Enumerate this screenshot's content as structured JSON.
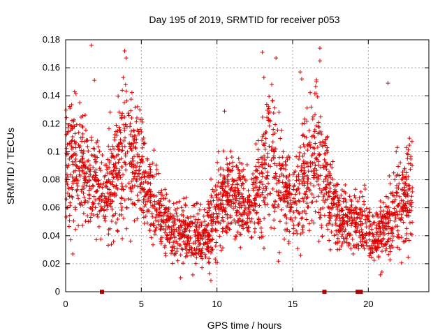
{
  "chart_data": {
    "type": "scatter",
    "title": "Day 195 of 2019, SRMTID for receiver p053",
    "xlabel": "GPS time / hours",
    "ylabel": "SRMTID / TECUs",
    "xlim": [
      0,
      24
    ],
    "ylim": [
      0,
      0.18
    ],
    "xticks": [
      0,
      5,
      10,
      15,
      20
    ],
    "xtick_labels": [
      "0",
      "5",
      "10",
      "15",
      "20"
    ],
    "yticks": [
      0,
      0.02,
      0.04,
      0.06,
      0.08,
      0.1,
      0.12,
      0.14,
      0.16,
      0.18
    ],
    "ytick_labels": [
      "0",
      "0.02",
      "0.04",
      "0.06",
      "0.08",
      "0.1",
      "0.12",
      "0.14",
      "0.16",
      "0.18"
    ],
    "grid": true,
    "marker": "+",
    "color": "#dd0000",
    "trend": {
      "hours": [
        0,
        0.5,
        1,
        1.5,
        2,
        2.5,
        3,
        3.5,
        4,
        4.5,
        5,
        5.5,
        6,
        6.5,
        7,
        7.5,
        8,
        8.5,
        9,
        9.5,
        10,
        10.5,
        11,
        11.5,
        12,
        12.5,
        13,
        13.5,
        14,
        14.5,
        15,
        15.5,
        16,
        16.5,
        17,
        17.5,
        18,
        18.5,
        19,
        19.5,
        20,
        20.5,
        21,
        21.5,
        22,
        22.5,
        23
      ],
      "srmtid": [
        0.085,
        0.095,
        0.09,
        0.085,
        0.08,
        0.072,
        0.075,
        0.09,
        0.1,
        0.095,
        0.09,
        0.075,
        0.06,
        0.05,
        0.045,
        0.045,
        0.042,
        0.042,
        0.04,
        0.045,
        0.06,
        0.065,
        0.07,
        0.065,
        0.06,
        0.065,
        0.08,
        0.1,
        0.085,
        0.07,
        0.065,
        0.075,
        0.085,
        0.095,
        0.09,
        0.07,
        0.055,
        0.05,
        0.048,
        0.05,
        0.045,
        0.04,
        0.045,
        0.055,
        0.065,
        0.07,
        0.072
      ],
      "spread": [
        0.025,
        0.03,
        0.025,
        0.022,
        0.02,
        0.018,
        0.025,
        0.03,
        0.03,
        0.025,
        0.022,
        0.018,
        0.015,
        0.013,
        0.012,
        0.012,
        0.012,
        0.012,
        0.012,
        0.013,
        0.02,
        0.018,
        0.017,
        0.015,
        0.015,
        0.018,
        0.028,
        0.032,
        0.025,
        0.018,
        0.017,
        0.025,
        0.03,
        0.032,
        0.028,
        0.02,
        0.015,
        0.013,
        0.013,
        0.013,
        0.012,
        0.012,
        0.013,
        0.018,
        0.022,
        0.022,
        0.018
      ]
    },
    "outliers": [
      {
        "x": 1.7,
        "y": 0.176
      },
      {
        "x": 3.9,
        "y": 0.172
      },
      {
        "x": 4.0,
        "y": 0.167
      },
      {
        "x": 3.8,
        "y": 0.153
      },
      {
        "x": 1.9,
        "y": 0.151
      },
      {
        "x": 13.0,
        "y": 0.171
      },
      {
        "x": 13.9,
        "y": 0.167
      },
      {
        "x": 16.8,
        "y": 0.174
      },
      {
        "x": 16.8,
        "y": 0.165
      },
      {
        "x": 15.5,
        "y": 0.157
      },
      {
        "x": 15.6,
        "y": 0.152
      },
      {
        "x": 21.3,
        "y": 0.149
      },
      {
        "x": 13.1,
        "y": 0.153
      },
      {
        "x": 10.5,
        "y": 0.129
      },
      {
        "x": 9.6,
        "y": 0.008
      },
      {
        "x": 9.5,
        "y": 0.013
      },
      {
        "x": 7.6,
        "y": 0.01
      },
      {
        "x": 8.4,
        "y": 0.012
      },
      {
        "x": 20.8,
        "y": 0.012
      },
      {
        "x": 20.9,
        "y": 0.014
      }
    ],
    "zero_markers": [
      2.4,
      17.1,
      19.3,
      19.5
    ]
  }
}
